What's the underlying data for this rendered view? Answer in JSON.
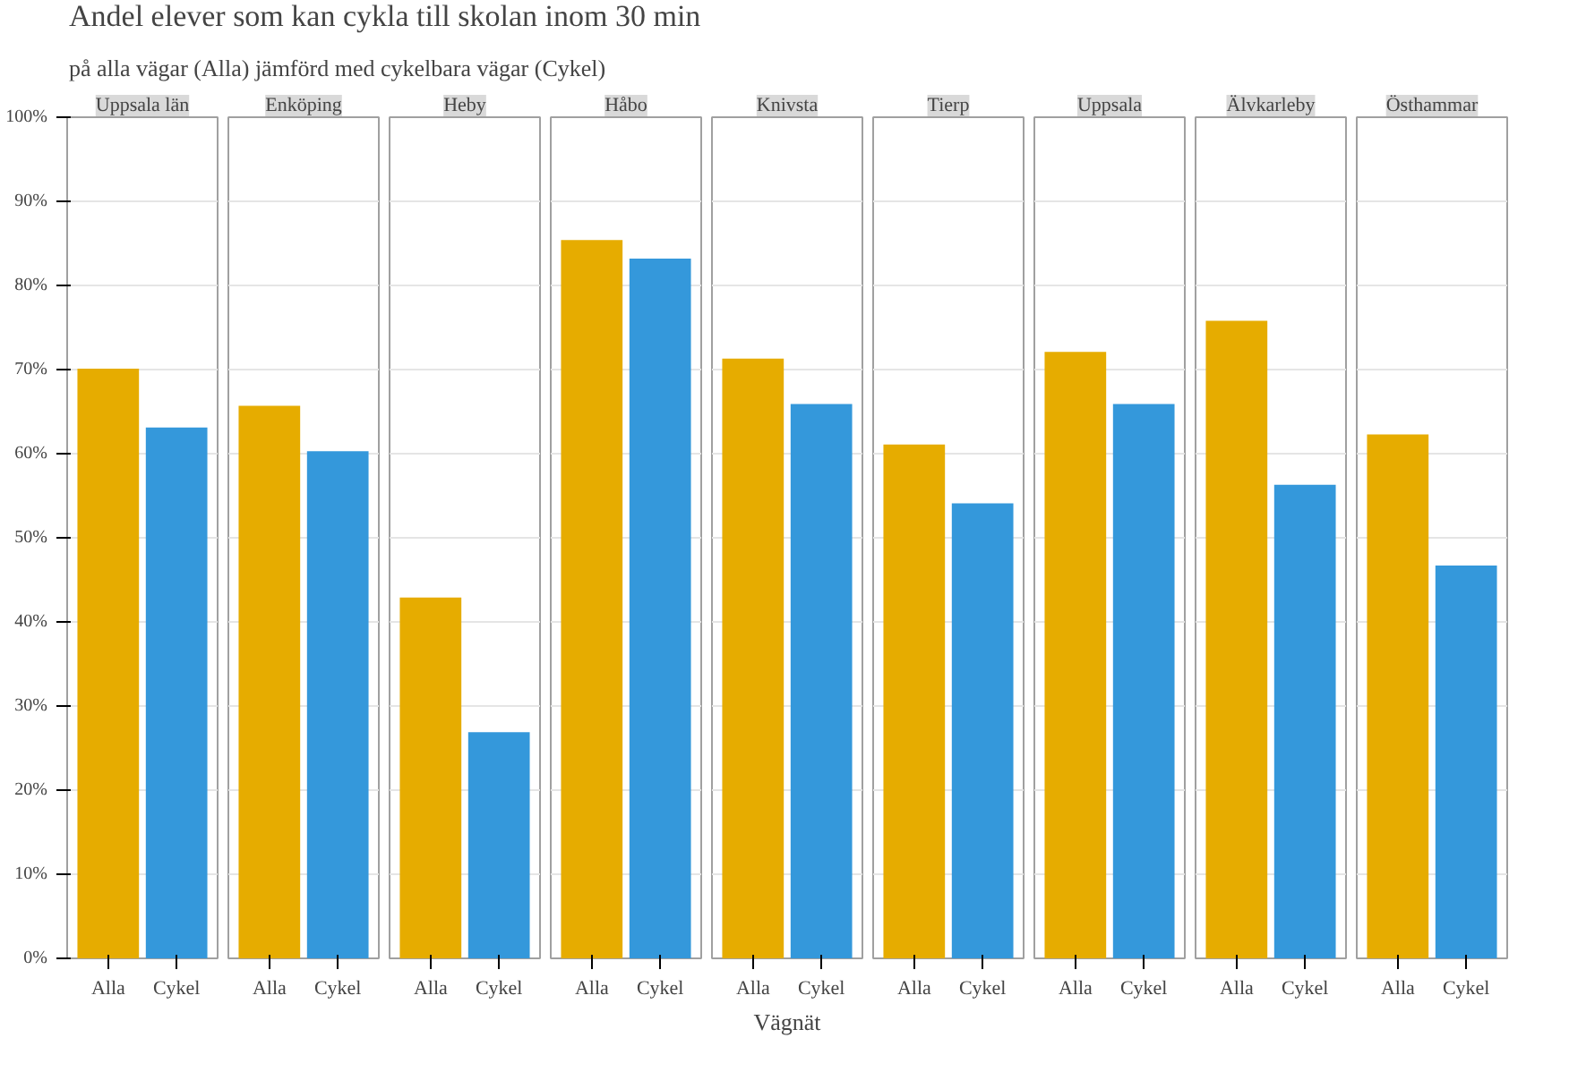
{
  "chart_data": [
    {
      "type": "other",
      "title": "Andel elever som kan cykla till skolan inom 30 min",
      "subtitle": "på alla vägar (Alla) jämförd med cykelbara vägar (Cykel)"
    },
    {
      "type": "bar",
      "title": "Uppsala län",
      "categories": [
        "Alla",
        "Cykel"
      ],
      "values": [
        70.1,
        63.1
      ],
      "colors": [
        "#e6ac00",
        "#3498db"
      ],
      "ylim": [
        0,
        100
      ],
      "yticks": [
        {
          "value": 0,
          "label": "0%"
        },
        {
          "value": 10,
          "label": "10%"
        },
        {
          "value": 20,
          "label": "20%"
        },
        {
          "value": 30,
          "label": "30%"
        },
        {
          "value": 40,
          "label": "40%"
        },
        {
          "value": 50,
          "label": "50%"
        },
        {
          "value": 60,
          "label": "60%"
        },
        {
          "value": 70,
          "label": "70%"
        },
        {
          "value": 80,
          "label": "80%"
        },
        {
          "value": 90,
          "label": "90%"
        },
        {
          "value": 100,
          "label": "100%"
        }
      ],
      "grid": "y"
    },
    {
      "type": "bar",
      "title": "Enköping",
      "categories": [
        "Alla",
        "Cykel"
      ],
      "values": [
        65.7,
        60.3
      ],
      "colors": [
        "#e6ac00",
        "#3498db"
      ],
      "ylim": [
        0,
        100
      ],
      "grid": "y",
      "tick_labels": "x"
    },
    {
      "type": "bar",
      "title": "Heby",
      "categories": [
        "Alla",
        "Cykel"
      ],
      "values": [
        42.9,
        26.9
      ],
      "colors": [
        "#e6ac00",
        "#3498db"
      ],
      "ylim": [
        0,
        100
      ],
      "grid": "y",
      "tick_labels": "x"
    },
    {
      "type": "bar",
      "title": "Håbo",
      "categories": [
        "Alla",
        "Cykel"
      ],
      "values": [
        85.4,
        83.2
      ],
      "colors": [
        "#e6ac00",
        "#3498db"
      ],
      "ylim": [
        0,
        100
      ],
      "grid": "y",
      "tick_labels": "x"
    },
    {
      "type": "bar",
      "title": "Knivsta",
      "xlabel": "Vägnät",
      "categories": [
        "Alla",
        "Cykel"
      ],
      "values": [
        71.3,
        65.9
      ],
      "colors": [
        "#e6ac00",
        "#3498db"
      ],
      "ylim": [
        0,
        100
      ],
      "grid": "y",
      "tick_labels": "x"
    },
    {
      "type": "bar",
      "title": "Tierp",
      "categories": [
        "Alla",
        "Cykel"
      ],
      "values": [
        61.1,
        54.1
      ],
      "colors": [
        "#e6ac00",
        "#3498db"
      ],
      "ylim": [
        0,
        100
      ],
      "grid": "y",
      "tick_labels": "x"
    },
    {
      "type": "bar",
      "title": "Uppsala",
      "categories": [
        "Alla",
        "Cykel"
      ],
      "values": [
        72.1,
        65.9
      ],
      "colors": [
        "#e6ac00",
        "#3498db"
      ],
      "ylim": [
        0,
        100
      ],
      "grid": "y",
      "tick_labels": "x"
    },
    {
      "type": "bar",
      "title": "Älvkarleby",
      "categories": [
        "Alla",
        "Cykel"
      ],
      "values": [
        75.8,
        56.3
      ],
      "colors": [
        "#e6ac00",
        "#3498db"
      ],
      "ylim": [
        0,
        100
      ],
      "grid": "y",
      "tick_labels": "x"
    },
    {
      "type": "bar",
      "title": "Östhammar",
      "categories": [
        "Alla",
        "Cykel"
      ],
      "values": [
        62.3,
        46.7
      ],
      "colors": [
        "#e6ac00",
        "#3498db"
      ],
      "ylim": [
        0,
        100
      ],
      "grid": "y",
      "tick_labels": "x"
    }
  ]
}
